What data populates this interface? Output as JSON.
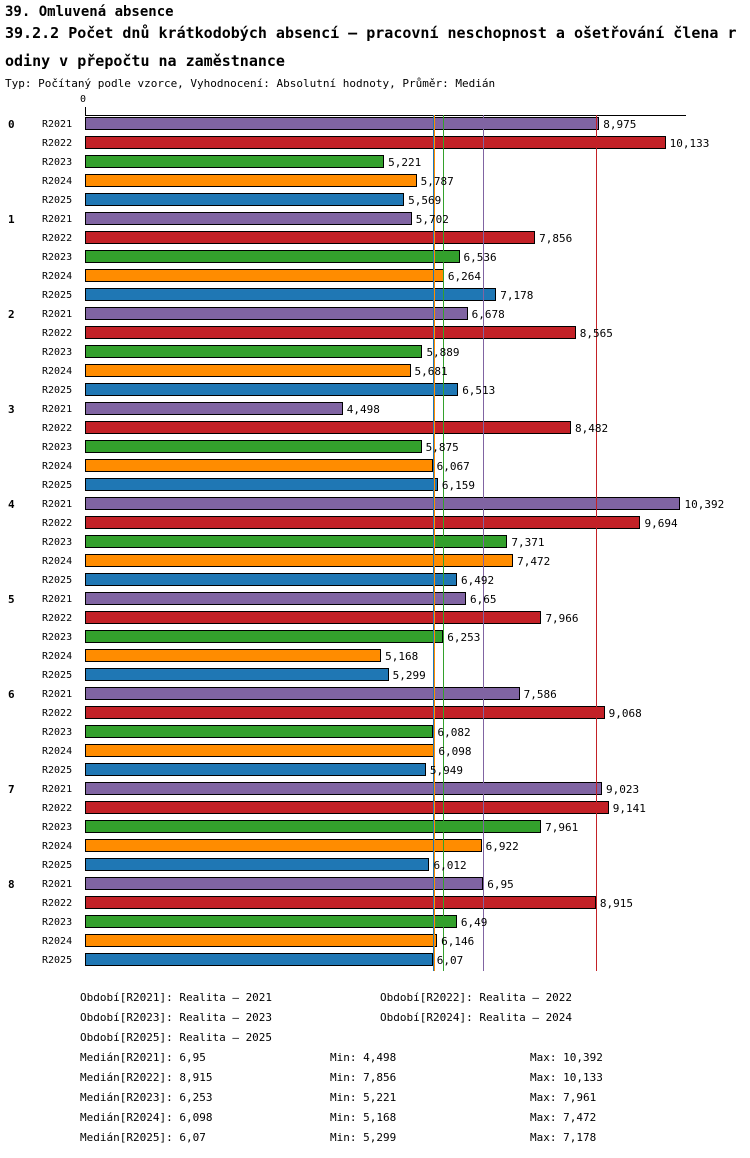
{
  "chart_data": {
    "type": "bar",
    "orientation": "horizontal",
    "title": "39. Omluvená absence",
    "subtitle_line1": "39.2.2 Počet dnů krátkodobých absencí – pracovní neschopnost a ošetřování člena r",
    "subtitle_line2": "odiny v přepočtu na zaměstnance",
    "meta": "Typ: Počítaný podle vzorce, Vyhodnocení: Absolutní hodnoty, Průměr: Medián",
    "axis_zero_label": "0",
    "xlim": [
      0,
      10.5
    ],
    "grid": false,
    "categories": [
      "0",
      "1",
      "2",
      "3",
      "4",
      "5",
      "6",
      "7",
      "8"
    ],
    "series": [
      {
        "name": "R2021",
        "color": "#8064A2",
        "median": 6.95,
        "values": [
          8.975,
          5.702,
          6.678,
          4.498,
          10.392,
          6.65,
          7.586,
          9.023,
          6.95
        ],
        "labels": [
          "8,975",
          "5,702",
          "6,678",
          "4,498",
          "10,392",
          "6,65",
          "7,586",
          "9,023",
          "6,95"
        ]
      },
      {
        "name": "R2022",
        "color": "#C32127",
        "median": 8.915,
        "values": [
          10.133,
          7.856,
          8.565,
          8.482,
          9.694,
          7.966,
          9.068,
          9.141,
          8.915
        ],
        "labels": [
          "10,133",
          "7,856",
          "8,565",
          "8,482",
          "9,694",
          "7,966",
          "9,068",
          "9,141",
          "8,915"
        ]
      },
      {
        "name": "R2023",
        "color": "#33A02C",
        "median": 6.253,
        "values": [
          5.221,
          6.536,
          5.889,
          5.875,
          7.371,
          6.253,
          6.082,
          7.961,
          6.49
        ],
        "labels": [
          "5,221",
          "6,536",
          "5,889",
          "5,875",
          "7,371",
          "6,253",
          "6,082",
          "7,961",
          "6,49"
        ]
      },
      {
        "name": "R2024",
        "color": "#FF8C00",
        "median": 6.098,
        "values": [
          5.787,
          6.264,
          5.681,
          6.067,
          7.472,
          5.168,
          6.098,
          6.922,
          6.146
        ],
        "labels": [
          "5,787",
          "6,264",
          "5,681",
          "6,067",
          "7,472",
          "5,168",
          "6,098",
          "6,922",
          "6,146"
        ]
      },
      {
        "name": "R2025",
        "color": "#1F77B4",
        "median": 6.07,
        "values": [
          5.569,
          7.178,
          6.513,
          6.159,
          6.492,
          5.299,
          5.949,
          6.012,
          6.07
        ],
        "labels": [
          "5,569",
          "7,178",
          "6,513",
          "6,159",
          "6,492",
          "5,299",
          "5,949",
          "6,012",
          "6,07"
        ]
      }
    ],
    "legend": [
      "Období[R2021]: Realita – 2021",
      "Období[R2022]: Realita – 2022",
      "Období[R2023]: Realita – 2023",
      "Období[R2024]: Realita – 2024",
      "Období[R2025]: Realita – 2025"
    ],
    "stats": [
      {
        "median": "Medián[R2021]: 6,95",
        "min": "Min: 4,498",
        "max": "Max: 10,392"
      },
      {
        "median": "Medián[R2022]: 8,915",
        "min": "Min: 7,856",
        "max": "Max: 10,133"
      },
      {
        "median": "Medián[R2023]: 6,253",
        "min": "Min: 5,221",
        "max": "Max: 7,961"
      },
      {
        "median": "Medián[R2024]: 6,098",
        "min": "Min: 5,168",
        "max": "Max: 7,472"
      },
      {
        "median": "Medián[R2025]: 6,07",
        "min": "Min: 5,299",
        "max": "Max: 7,178"
      }
    ]
  }
}
